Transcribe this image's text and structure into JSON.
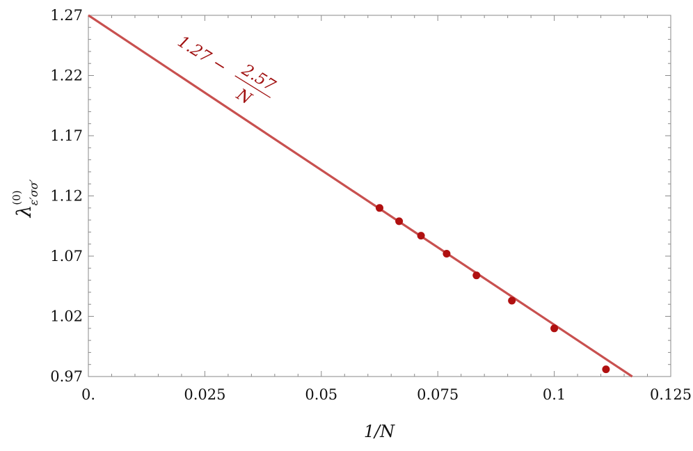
{
  "chart_data": {
    "type": "scatter",
    "xlabel": "1/N",
    "ylabel_base": "λ",
    "ylabel_superscript": "(0)",
    "ylabel_subscript": "ε′σσ′",
    "xlim": [
      0,
      0.125
    ],
    "ylim": [
      0.97,
      1.27
    ],
    "x_ticks": [
      {
        "value": 0,
        "label": "0."
      },
      {
        "value": 0.025,
        "label": "0.025"
      },
      {
        "value": 0.05,
        "label": "0.05"
      },
      {
        "value": 0.075,
        "label": "0.075"
      },
      {
        "value": 0.1,
        "label": "0.1"
      },
      {
        "value": 0.125,
        "label": "0.125"
      }
    ],
    "y_ticks": [
      {
        "value": 0.97,
        "label": "0.97"
      },
      {
        "value": 1.02,
        "label": "1.02"
      },
      {
        "value": 1.07,
        "label": "1.07"
      },
      {
        "value": 1.12,
        "label": "1.12"
      },
      {
        "value": 1.17,
        "label": "1.17"
      },
      {
        "value": 1.22,
        "label": "1.22"
      },
      {
        "value": 1.27,
        "label": "1.27"
      }
    ],
    "series": [
      {
        "type": "scatter",
        "color": "#b01010",
        "x": [
          0.0625,
          0.0667,
          0.0714,
          0.0769,
          0.0833,
          0.0909,
          0.1,
          0.1111
        ],
        "y": [
          1.11,
          1.099,
          1.087,
          1.072,
          1.054,
          1.033,
          1.01,
          0.976
        ]
      },
      {
        "type": "line",
        "color": "#c8504f",
        "intercept": 1.27,
        "slope": -2.57
      }
    ],
    "annotation": {
      "numerator_text": "1.27 − ",
      "fraction_numerator": "2.57",
      "fraction_denominator": "N",
      "color": "#a01010"
    },
    "grid": false
  }
}
